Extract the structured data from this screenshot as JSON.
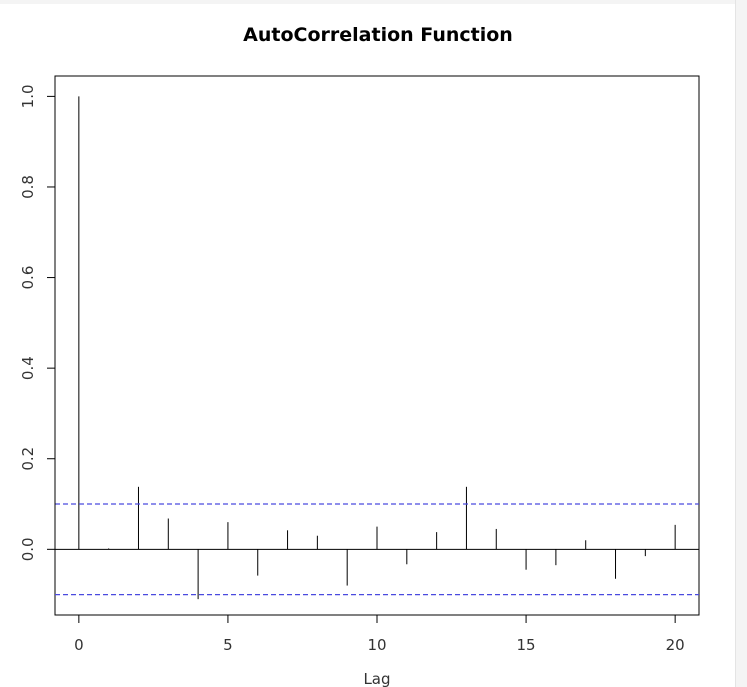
{
  "chart_data": {
    "type": "bar",
    "title": "AutoCorrelation Function",
    "xlabel": "Lag",
    "ylabel": "",
    "x": [
      0,
      1,
      2,
      3,
      4,
      5,
      6,
      7,
      8,
      9,
      10,
      11,
      12,
      13,
      14,
      15,
      16,
      17,
      18,
      19,
      20
    ],
    "values": [
      1.0,
      0.002,
      0.138,
      0.068,
      -0.11,
      0.06,
      -0.058,
      0.042,
      0.03,
      -0.08,
      0.05,
      -0.033,
      0.038,
      0.138,
      0.045,
      -0.045,
      -0.035,
      0.02,
      -0.065,
      -0.015,
      0.054
    ],
    "xlim": [
      -0.8,
      20.8
    ],
    "ylim": [
      -0.145,
      1.045
    ],
    "xticks": [
      0,
      5,
      10,
      15,
      20
    ],
    "xtick_labels": [
      "0",
      "5",
      "10",
      "15",
      "20"
    ],
    "yticks": [
      0.0,
      0.2,
      0.4,
      0.6,
      0.8,
      1.0
    ],
    "ytick_labels": [
      "0.0",
      "0.2",
      "0.4",
      "0.6",
      "0.8",
      "1.0"
    ],
    "confidence_bounds": [
      0.1,
      -0.1
    ],
    "zero_line": true,
    "grid": false,
    "colors": {
      "bars": "#000000",
      "confidence": "#4a4adf",
      "axes": "#000000"
    }
  }
}
